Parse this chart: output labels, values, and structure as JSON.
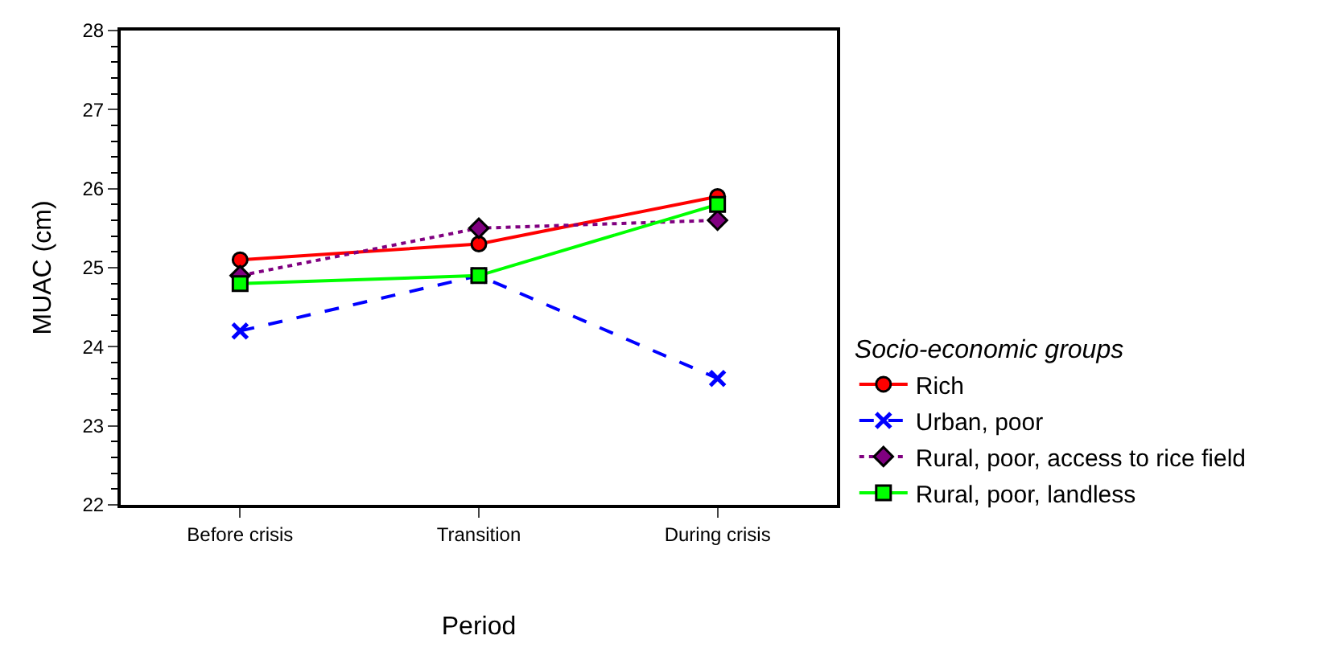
{
  "chart_data": {
    "type": "line",
    "xlabel": "Period",
    "ylabel": "MUAC (cm)",
    "legend_title": "Socio-economic groups",
    "legend": "right",
    "categories": [
      "Before crisis",
      "Transition",
      "During crisis"
    ],
    "ylim": [
      22,
      28
    ],
    "yticks": [
      22,
      23,
      24,
      25,
      26,
      27,
      28
    ],
    "series": [
      {
        "name": "Rich",
        "color": "#ff0000",
        "values": [
          25.1,
          25.3,
          25.9
        ],
        "marker": "circle",
        "line_style": "solid"
      },
      {
        "name": "Urban, poor",
        "color": "#0000ff",
        "values": [
          24.2,
          24.9,
          23.6
        ],
        "marker": "cross",
        "line_style": "dashed"
      },
      {
        "name": "Rural, poor, access to rice field",
        "color": "#800080",
        "values": [
          24.9,
          25.5,
          25.6
        ],
        "marker": "diamond",
        "line_style": "dotted"
      },
      {
        "name": "Rural, poor, landless",
        "color": "#00ff00",
        "values": [
          24.8,
          24.9,
          25.8
        ],
        "marker": "square",
        "line_style": "solid"
      }
    ]
  }
}
